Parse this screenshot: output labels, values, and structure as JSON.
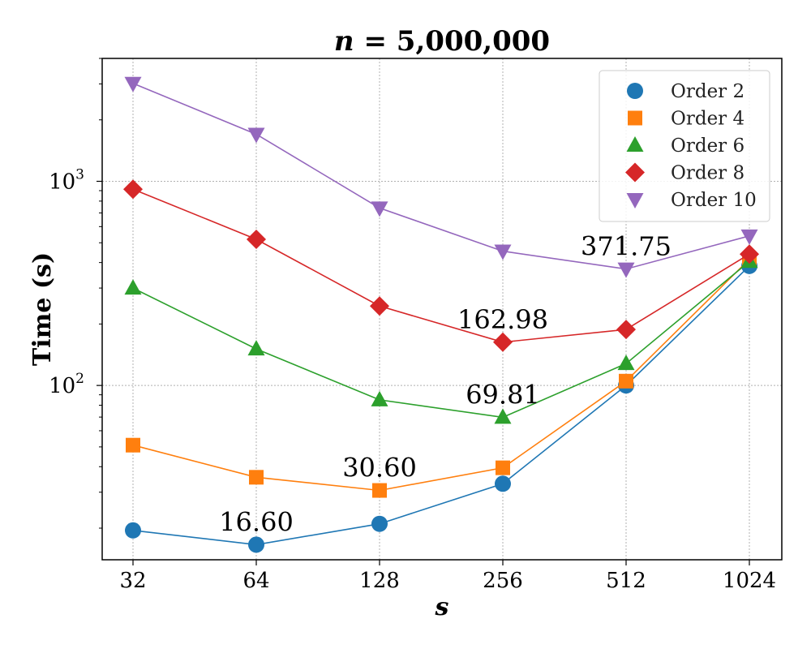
{
  "chart_data": {
    "type": "line",
    "title": "n = 5,000,000",
    "title_var": "n",
    "title_rest": " = 5,000,000",
    "xlabel": "s",
    "ylabel": "Time (s)",
    "x": [
      32,
      64,
      128,
      256,
      512,
      1024
    ],
    "x_tick_labels": [
      "32",
      "64",
      "128",
      "256",
      "512",
      "1024"
    ],
    "y_scale": "log",
    "ylim": [
      14,
      4000
    ],
    "y_major_ticks": [
      {
        "value": 100,
        "base": "10",
        "exp": "2"
      },
      {
        "value": 1000,
        "base": "10",
        "exp": "3"
      }
    ],
    "grid": true,
    "legend_position": "top-right",
    "series": [
      {
        "name": "Order 2",
        "color": "#1f77b4",
        "marker": "circle",
        "values": [
          19.5,
          16.6,
          21.0,
          33.0,
          100.0,
          385.0
        ]
      },
      {
        "name": "Order 4",
        "color": "#ff7f0e",
        "marker": "square",
        "values": [
          51.0,
          35.5,
          30.6,
          39.5,
          105.0,
          415.0
        ]
      },
      {
        "name": "Order 6",
        "color": "#2ca02c",
        "marker": "triangle-up",
        "values": [
          300.0,
          151.0,
          85.0,
          69.81,
          128.0,
          405.0
        ]
      },
      {
        "name": "Order 8",
        "color": "#d62728",
        "marker": "diamond",
        "values": [
          915.0,
          520.0,
          245.0,
          162.98,
          188.0,
          440.0
        ]
      },
      {
        "name": "Order 10",
        "color": "#9467bd",
        "marker": "triangle-down",
        "values": [
          3020.0,
          1700.0,
          740.0,
          455.0,
          371.75,
          540.0
        ]
      }
    ],
    "annotations": [
      {
        "text": "16.60",
        "x": 64,
        "y": 16.6
      },
      {
        "text": "30.60",
        "x": 128,
        "y": 30.6
      },
      {
        "text": "69.81",
        "x": 256,
        "y": 69.81
      },
      {
        "text": "162.98",
        "x": 256,
        "y": 162.98
      },
      {
        "text": "371.75",
        "x": 512,
        "y": 371.75
      }
    ]
  }
}
